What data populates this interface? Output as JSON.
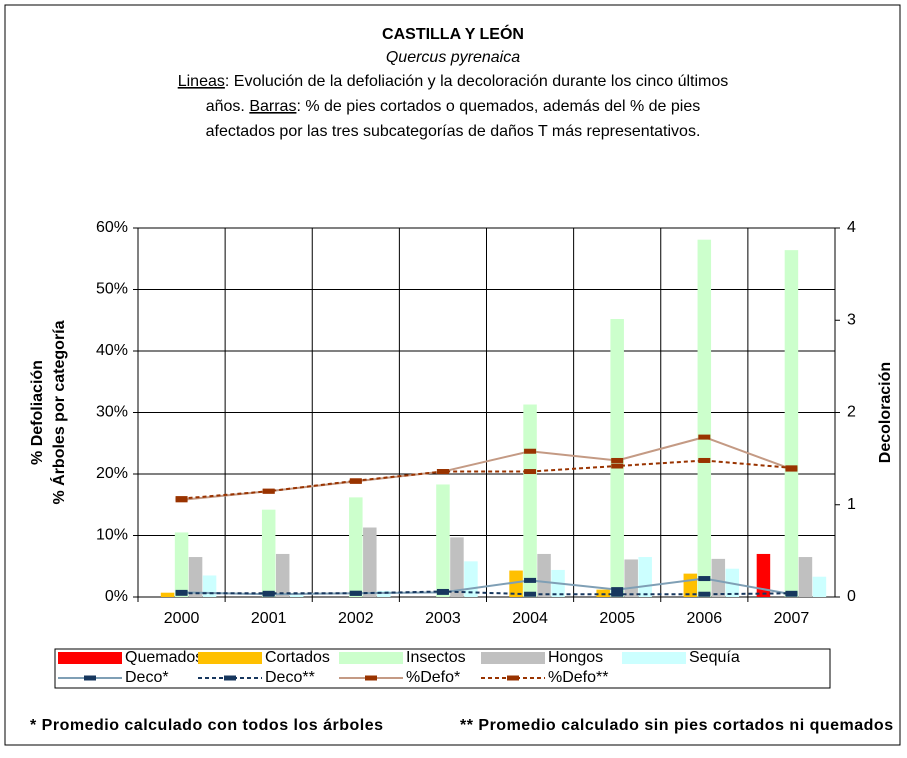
{
  "chart_data": {
    "type": "bar-line",
    "title": "CASTILLA Y LEÓN",
    "species": "Quercus pyrenaica",
    "description_lines": [
      [
        {
          "text": "Lineas",
          "underline": true
        },
        {
          "text": ": Evolución de la defoliación y la decoloración durante los cinco últimos"
        }
      ],
      [
        {
          "text": "años. "
        },
        {
          "text": "Barras",
          "underline": true
        },
        {
          "text": ": % de pies cortados o quemados, además del % de pies"
        }
      ],
      [
        {
          "text": "afectados por las tres subcategorías de daños T más representativos."
        }
      ]
    ],
    "y_label_lines": [
      "% Defoliación",
      "% Árboles por categoría"
    ],
    "y2_label": "Decoloración",
    "categories": [
      "2000",
      "2001",
      "2002",
      "2003",
      "2004",
      "2005",
      "2006",
      "2007"
    ],
    "series": [
      {
        "name": "Quemados",
        "kind": "bar",
        "color": "#ff0000",
        "values": [
          0,
          0,
          0,
          0,
          0,
          0,
          0,
          7
        ]
      },
      {
        "name": "Cortados",
        "kind": "bar",
        "color": "#ffc000",
        "values": [
          0.7,
          0,
          0,
          0,
          4.3,
          1.2,
          3.8,
          0
        ]
      },
      {
        "name": "Insectos",
        "kind": "bar",
        "color": "#ccffcc",
        "values": [
          10.5,
          14.2,
          16.2,
          18.3,
          31.3,
          45.2,
          58.1,
          56.4
        ]
      },
      {
        "name": "Hongos",
        "kind": "bar",
        "color": "#c0c0c0",
        "values": [
          6.5,
          7,
          11.3,
          9.7,
          7,
          6.1,
          6.2,
          6.5
        ]
      },
      {
        "name": "Sequía",
        "kind": "bar",
        "color": "#ccffff",
        "values": [
          3.5,
          0.3,
          1,
          5.8,
          4.4,
          6.5,
          4.6,
          3.3
        ]
      },
      {
        "name": "Deco*",
        "kind": "line",
        "axis": "y2",
        "color": "#7f9fb5",
        "marker_color": "#17375e",
        "dash": false,
        "values": [
          0.05,
          0.03,
          0.04,
          0.05,
          0.18,
          0.08,
          0.2,
          0.03
        ]
      },
      {
        "name": "Deco**",
        "kind": "line",
        "axis": "y2",
        "color": "#17375e",
        "marker_color": "#17375e",
        "dash": true,
        "values": [
          0.04,
          0.04,
          0.04,
          0.06,
          0.03,
          0.03,
          0.03,
          0.04
        ]
      },
      {
        "name": "%Defo*",
        "kind": "line",
        "color": "#c49a84",
        "marker_color": "#993300",
        "dash": false,
        "values": [
          15.8,
          17.2,
          18.8,
          20.4,
          23.7,
          22.2,
          26,
          20.8
        ]
      },
      {
        "name": "%Defo**",
        "kind": "line",
        "color": "#993300",
        "marker_color": "#993300",
        "dash": true,
        "values": [
          16,
          17.2,
          18.9,
          20.4,
          20.4,
          21.3,
          22.2,
          21
        ]
      }
    ],
    "ylim": [
      0,
      60
    ],
    "yticks": [
      {
        "value": 0,
        "label": "0%"
      },
      {
        "value": 10,
        "label": "10%"
      },
      {
        "value": 20,
        "label": "20%"
      },
      {
        "value": 30,
        "label": "30%"
      },
      {
        "value": 40,
        "label": "40%"
      },
      {
        "value": 50,
        "label": "50%"
      },
      {
        "value": 60,
        "label": "60%"
      }
    ],
    "y2lim": [
      0,
      4
    ],
    "y2ticks": [
      0,
      1,
      2,
      3,
      4
    ],
    "grid": true,
    "legend": "bottom",
    "footnotes": [
      "* Promedio calculado con todos los árboles",
      "** Promedio calculado sin pies cortados ni quemados"
    ]
  }
}
